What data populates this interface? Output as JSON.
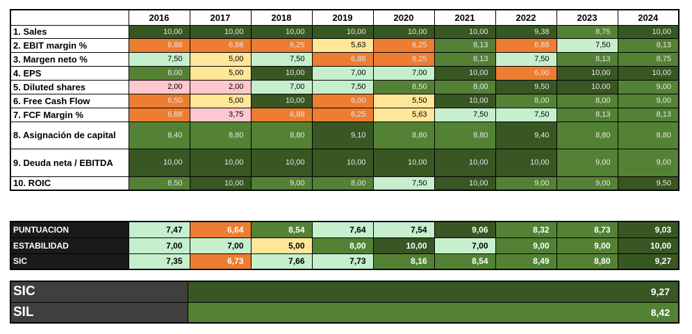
{
  "colors": {
    "dark": "#385723",
    "mid": "#548235",
    "light": "#C6EFCE",
    "orange": "#ED7D31",
    "yellow": "#FFE699",
    "pink": "#FFC7CE"
  },
  "years": [
    "2016",
    "2017",
    "2018",
    "2019",
    "2020",
    "2021",
    "2022",
    "2023",
    "2024"
  ],
  "rows": [
    {
      "label": "1. Sales",
      "values": [
        "10,00",
        "10,00",
        "10,00",
        "10,00",
        "10,00",
        "10,00",
        "9,38",
        "8,75",
        "10,00"
      ],
      "colors": [
        "dark",
        "dark",
        "dark",
        "dark",
        "dark",
        "dark",
        "dark",
        "mid",
        "dark"
      ]
    },
    {
      "label": "2. EBIT margin %",
      "values": [
        "6,88",
        "6,88",
        "6,25",
        "5,63",
        "6,25",
        "8,13",
        "6,88",
        "7,50",
        "8,13"
      ],
      "colors": [
        "orange",
        "orange",
        "orange",
        "yellow",
        "orange",
        "mid",
        "orange",
        "light",
        "mid"
      ]
    },
    {
      "label": "3. Margen neto %",
      "values": [
        "7,50",
        "5,00",
        "7,50",
        "6,88",
        "6,25",
        "8,13",
        "7,50",
        "8,13",
        "8,75"
      ],
      "colors": [
        "light",
        "yellow",
        "light",
        "orange",
        "orange",
        "mid",
        "light",
        "mid",
        "mid"
      ]
    },
    {
      "label": "4. EPS",
      "values": [
        "8,00",
        "5,00",
        "10,00",
        "7,00",
        "7,00",
        "10,00",
        "6,00",
        "10,00",
        "10,00"
      ],
      "colors": [
        "mid",
        "yellow",
        "dark",
        "light",
        "light",
        "dark",
        "orange",
        "dark",
        "dark"
      ]
    },
    {
      "label": "5. Diluted shares",
      "values": [
        "2,00",
        "2,00",
        "7,00",
        "7,50",
        "8,50",
        "8,00",
        "9,50",
        "10,00",
        "9,00"
      ],
      "colors": [
        "pink",
        "pink",
        "light",
        "light",
        "mid",
        "mid",
        "dark",
        "dark",
        "mid"
      ]
    },
    {
      "label": "6. Free Cash Flow",
      "values": [
        "6,50",
        "5,00",
        "10,00",
        "6,00",
        "5,50",
        "10,00",
        "8,00",
        "8,00",
        "9,00"
      ],
      "colors": [
        "orange",
        "yellow",
        "dark",
        "orange",
        "yellow",
        "dark",
        "mid",
        "mid",
        "mid"
      ]
    },
    {
      "label": "7. FCF Margin %",
      "values": [
        "6,88",
        "3,75",
        "6,88",
        "6,25",
        "5,63",
        "7,50",
        "7,50",
        "8,13",
        "8,13"
      ],
      "colors": [
        "orange",
        "pink",
        "orange",
        "orange",
        "yellow",
        "light",
        "light",
        "mid",
        "mid"
      ]
    },
    {
      "label": "8. Asignación de capital",
      "values": [
        "8,40",
        "8,80",
        "8,80",
        "9,10",
        "8,80",
        "8,80",
        "9,40",
        "8,80",
        "8,80"
      ],
      "colors": [
        "mid",
        "mid",
        "mid",
        "dark",
        "mid",
        "mid",
        "dark",
        "mid",
        "mid"
      ]
    },
    {
      "label": "9. Deuda neta / EBITDA",
      "values": [
        "10,00",
        "10,00",
        "10,00",
        "10,00",
        "10,00",
        "10,00",
        "10,00",
        "9,00",
        "9,00"
      ],
      "colors": [
        "dark",
        "dark",
        "dark",
        "dark",
        "dark",
        "dark",
        "dark",
        "mid",
        "mid"
      ]
    },
    {
      "label": "10. ROIC",
      "values": [
        "8,50",
        "10,00",
        "9,00",
        "8,00",
        "7,50",
        "10,00",
        "9,00",
        "9,00",
        "9,50"
      ],
      "colors": [
        "mid",
        "dark",
        "mid",
        "mid",
        "light",
        "dark",
        "mid",
        "mid",
        "dark"
      ]
    }
  ],
  "summary": [
    {
      "label": "PUNTUACION",
      "values": [
        "7,47",
        "6,64",
        "8,54",
        "7,64",
        "7,54",
        "9,06",
        "8,32",
        "8,73",
        "9,03"
      ],
      "colors": [
        "light",
        "orange",
        "mid",
        "light",
        "light",
        "dark",
        "mid",
        "mid",
        "dark"
      ]
    },
    {
      "label": "ESTABILIDAD",
      "values": [
        "7,00",
        "7,00",
        "5,00",
        "8,00",
        "10,00",
        "7,00",
        "9,00",
        "9,00",
        "10,00"
      ],
      "colors": [
        "light",
        "light",
        "yellow",
        "mid",
        "dark",
        "light",
        "mid",
        "mid",
        "dark"
      ]
    },
    {
      "label": "SIC",
      "values": [
        "7,35",
        "6,73",
        "7,66",
        "7,73",
        "8,16",
        "8,54",
        "8,49",
        "8,80",
        "9,27"
      ],
      "colors": [
        "light",
        "orange",
        "light",
        "light",
        "mid",
        "mid",
        "mid",
        "mid",
        "dark"
      ]
    }
  ],
  "final": [
    {
      "label": "SIC",
      "value": "9,27",
      "color": "dark"
    },
    {
      "label": "SIL",
      "value": "8,42",
      "color": "mid"
    }
  ]
}
